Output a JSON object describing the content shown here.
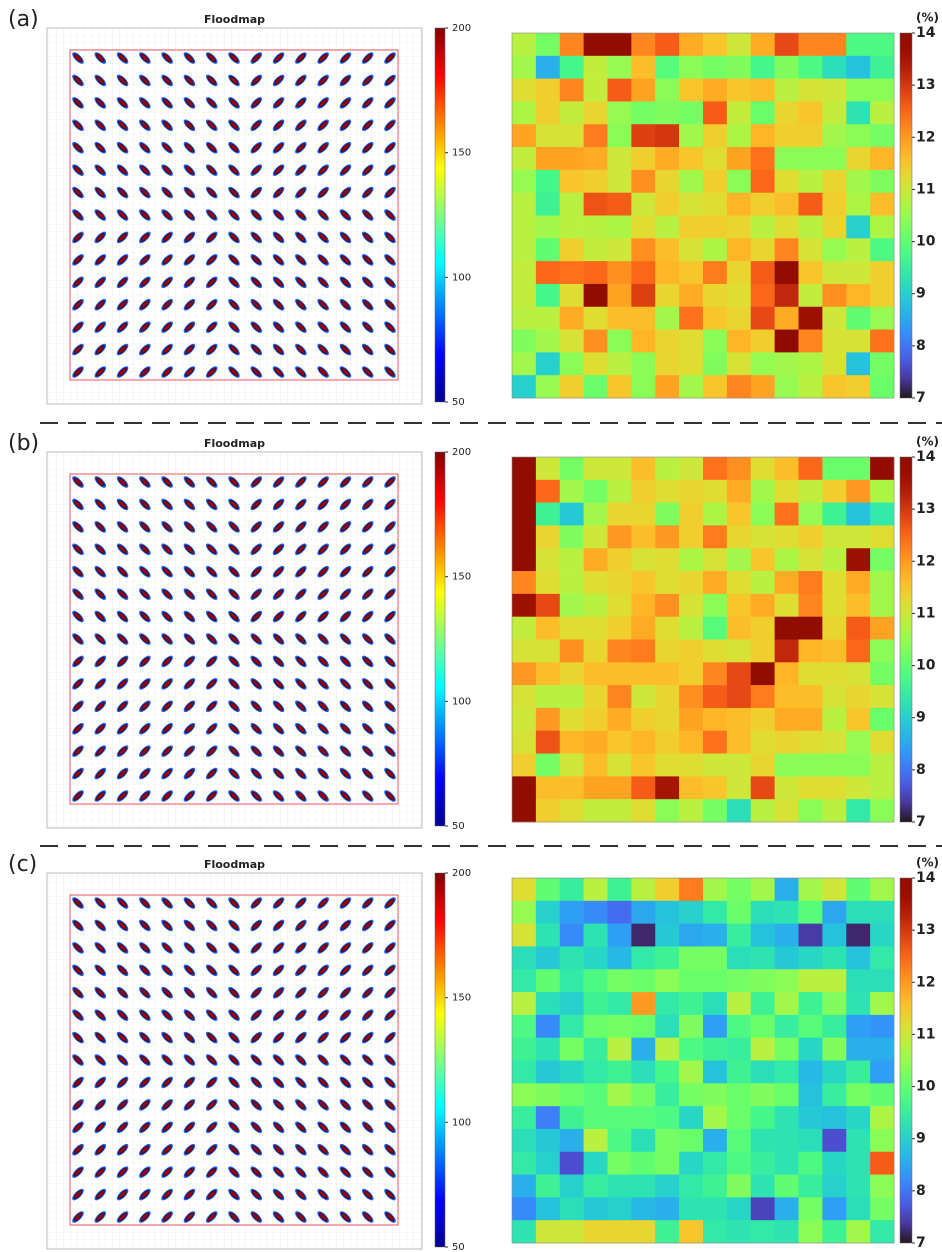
{
  "chart_data": [
    {
      "type": "heatmap",
      "label": "(a)",
      "floodmap": {
        "title": "Floodmap",
        "clim": [
          50,
          200
        ],
        "cticks": [
          50,
          100,
          150,
          200
        ]
      },
      "clim": [
        7,
        14
      ],
      "cticks": [
        7,
        8,
        9,
        10,
        11,
        12,
        13,
        14
      ],
      "unit": "(%)",
      "values": [
        [
          10.8,
          10.2,
          12.2,
          14,
          14,
          12.2,
          12.6,
          11.8,
          11.5,
          11,
          11.8,
          12.8,
          12.2,
          12.2,
          9.8,
          9.8
        ],
        [
          10.6,
          8.6,
          9.7,
          10.9,
          10.5,
          11.6,
          9.9,
          10.4,
          10.2,
          10.3,
          9.7,
          10.3,
          9.8,
          9.2,
          8.8,
          9.6
        ],
        [
          11.2,
          11.4,
          12.2,
          10.9,
          12.6,
          11.9,
          10.4,
          11.5,
          11.8,
          11.5,
          11.6,
          10.8,
          11.1,
          11,
          10.4,
          10.4
        ],
        [
          10.7,
          11.4,
          10.9,
          11.3,
          10.5,
          10.2,
          10.3,
          10.2,
          12.6,
          10.9,
          10.1,
          11.3,
          11.5,
          10.9,
          9.3,
          10.8
        ],
        [
          11.9,
          11.1,
          11.1,
          12.3,
          10.4,
          12.9,
          13,
          10.6,
          11.4,
          10.7,
          11.7,
          11.4,
          11.4,
          10.6,
          10.4,
          10.2
        ],
        [
          10.9,
          11.9,
          11.9,
          11.8,
          11,
          11.4,
          11.8,
          11.5,
          11.2,
          11.9,
          12.4,
          10.4,
          10.4,
          10.4,
          11.3,
          11.7
        ],
        [
          10.5,
          9.7,
          11.5,
          11.4,
          11,
          12.1,
          11.3,
          10.6,
          11.4,
          10.4,
          12.5,
          11.2,
          10.8,
          11.3,
          10.6,
          10.3
        ],
        [
          10.8,
          9.6,
          10.8,
          12.7,
          12.6,
          11,
          11.4,
          11.1,
          11.2,
          11.7,
          11.4,
          11.6,
          12.6,
          11.4,
          10.7,
          11.6
        ],
        [
          10.8,
          10.6,
          10.8,
          10.8,
          10.7,
          11.2,
          10.8,
          11.4,
          11.4,
          11.3,
          10.8,
          11.2,
          10.8,
          11.3,
          9,
          10.7
        ],
        [
          10.8,
          10,
          11.4,
          10.9,
          11,
          12.1,
          11.6,
          11.1,
          10.7,
          11.7,
          11.3,
          12.2,
          11.1,
          10.5,
          10.8,
          9.8
        ],
        [
          10.9,
          12.5,
          12.4,
          12.5,
          12.1,
          12.5,
          11.7,
          11.5,
          12.3,
          11.3,
          12.6,
          14,
          11.5,
          11,
          11,
          11.4
        ],
        [
          10.9,
          9.7,
          11.2,
          14,
          11.9,
          12.9,
          11.3,
          11.8,
          11.3,
          11.2,
          12.5,
          13.2,
          10.9,
          12.1,
          11.7,
          11.4
        ],
        [
          10.8,
          10.8,
          11.8,
          11.2,
          11.6,
          11.6,
          10.6,
          12.4,
          11.5,
          11.3,
          12.8,
          11.8,
          13.6,
          11,
          10,
          10.5
        ],
        [
          10.3,
          10.6,
          11.1,
          12.1,
          10.4,
          11.7,
          11.3,
          11.2,
          10.4,
          11.7,
          11.4,
          13.9,
          12.2,
          11.1,
          11.1,
          12.4
        ],
        [
          10.6,
          9,
          10.4,
          11.2,
          10.8,
          10.4,
          11.3,
          11.2,
          10.3,
          11.1,
          10.5,
          10.6,
          10.7,
          11.1,
          8.8,
          10.2
        ],
        [
          9,
          10.5,
          11.4,
          10.1,
          11.5,
          10.4,
          11.9,
          10.6,
          11.5,
          12.2,
          11.9,
          10.5,
          10.8,
          11.5,
          11.4,
          10.1
        ]
      ]
    },
    {
      "type": "heatmap",
      "label": "(b)",
      "floodmap": {
        "title": "Floodmap",
        "clim": [
          50,
          200
        ],
        "cticks": [
          50,
          100,
          150,
          200
        ]
      },
      "clim": [
        7,
        14
      ],
      "cticks": [
        7,
        8,
        9,
        10,
        11,
        12,
        13,
        14
      ],
      "unit": "(%)",
      "values": [
        [
          14,
          11,
          10.2,
          11,
          11,
          11.6,
          10.8,
          11,
          12.4,
          12.1,
          11.2,
          11.6,
          12.5,
          10.1,
          10.1,
          14
        ],
        [
          14,
          12.5,
          10.6,
          10.2,
          10.8,
          11.4,
          11.2,
          11.3,
          11.2,
          11.8,
          10.6,
          11.2,
          10.9,
          11.4,
          12,
          10.7
        ],
        [
          14,
          9.6,
          8.9,
          10.6,
          11.3,
          11.3,
          10.3,
          11.4,
          10.7,
          11.5,
          10.4,
          12.4,
          10.5,
          9.6,
          8.8,
          9.4
        ],
        [
          14,
          11.3,
          10.3,
          11,
          12,
          11.6,
          12,
          11.4,
          12.3,
          11.3,
          11.1,
          11.2,
          11.4,
          11,
          11,
          11.2
        ],
        [
          14,
          11.1,
          10.8,
          11.8,
          11.4,
          11.1,
          11.2,
          10.7,
          11.1,
          10.6,
          11.5,
          10.7,
          11.1,
          10.8,
          13.6,
          10.2
        ],
        [
          12.2,
          11.2,
          10.8,
          11.2,
          11.3,
          11.5,
          11.2,
          11.3,
          11.8,
          11.2,
          10.8,
          11.8,
          12.3,
          11.2,
          11.8,
          10.6
        ],
        [
          13.6,
          12.8,
          10.6,
          10.8,
          11.2,
          11.7,
          12.1,
          11.1,
          10.4,
          11.5,
          11.8,
          11.2,
          12.2,
          11.2,
          11.6,
          10.6
        ],
        [
          10.9,
          11.6,
          11.2,
          11.2,
          11.4,
          11.8,
          11.2,
          10.8,
          9.9,
          11.6,
          11.4,
          14,
          14,
          11.3,
          12.6,
          11.9
        ],
        [
          11.1,
          11.1,
          12.1,
          11.3,
          12.2,
          12.3,
          11.3,
          11.4,
          11.2,
          11.1,
          11.4,
          13.2,
          11.7,
          11.6,
          12.5,
          10.4
        ],
        [
          12,
          11.6,
          11.3,
          11.6,
          11.6,
          11.6,
          11.6,
          11.4,
          12.2,
          12.8,
          14,
          11.7,
          11.2,
          11.2,
          11.1,
          10.2
        ],
        [
          11.1,
          10.8,
          10.8,
          11.3,
          12.2,
          11,
          11.3,
          12.1,
          12.6,
          12.8,
          12.3,
          11.6,
          11.6,
          11.1,
          11.3,
          11.1
        ],
        [
          11,
          12,
          11.2,
          11.4,
          11.8,
          11.4,
          11.3,
          11.9,
          11.7,
          11.6,
          11.4,
          11.8,
          11.8,
          10.8,
          11.5,
          10.1
        ],
        [
          11.1,
          12.7,
          11.7,
          11.8,
          11.5,
          11.7,
          11.4,
          11.7,
          12.4,
          11.6,
          11.2,
          11.3,
          11.2,
          11.1,
          10.5,
          11.2
        ],
        [
          11.4,
          10.2,
          11,
          11.6,
          11.1,
          11.5,
          11.2,
          11.2,
          11,
          11,
          11.3,
          10.4,
          10.4,
          10.4,
          10.4,
          10.8
        ],
        [
          14,
          11.6,
          11.6,
          11.9,
          11.9,
          12.6,
          13.5,
          11.6,
          11.5,
          11,
          12.8,
          11,
          11.2,
          11.2,
          11,
          10.8
        ],
        [
          14,
          11.4,
          11.2,
          10.9,
          10.9,
          11.2,
          10.4,
          10.8,
          10.2,
          9.2,
          10.8,
          11.1,
          10.4,
          10.8,
          9.4,
          10.4
        ]
      ]
    },
    {
      "type": "heatmap",
      "label": "(c)",
      "floodmap": {
        "title": "Floodmap",
        "clim": [
          50,
          200
        ],
        "cticks": [
          50,
          100,
          150,
          200
        ]
      },
      "clim": [
        7,
        14
      ],
      "cticks": [
        7,
        8,
        9,
        10,
        11,
        12,
        13,
        14
      ],
      "unit": "(%)",
      "values": [
        [
          11.2,
          10,
          9.5,
          10.8,
          9.6,
          10.8,
          11.4,
          12.3,
          10.6,
          10.2,
          10.6,
          8.6,
          10.6,
          11,
          10,
          10.6
        ],
        [
          10.5,
          9,
          8.4,
          8.2,
          7.9,
          8.5,
          8.8,
          9,
          9.4,
          10.1,
          9.2,
          9.3,
          9.9,
          8.5,
          9.2,
          9.2
        ],
        [
          11.1,
          9.3,
          8.2,
          9.3,
          8.4,
          7.2,
          8.9,
          8.5,
          8.6,
          9.5,
          8.8,
          8.6,
          7.4,
          8.8,
          7.2,
          9.1
        ],
        [
          9.2,
          8.9,
          9.3,
          9.1,
          8.7,
          9.4,
          9.6,
          10.2,
          10.2,
          9.2,
          9.3,
          8.9,
          9.1,
          9.3,
          8.8,
          9.4
        ],
        [
          9.4,
          10,
          9.4,
          9.8,
          10.2,
          10.1,
          10.4,
          10.1,
          10.1,
          10.2,
          10.3,
          10.4,
          10.8,
          10.8,
          9.2,
          9.2
        ],
        [
          10.8,
          9.2,
          9,
          9.6,
          9.4,
          12,
          9.4,
          9.6,
          9.2,
          10.8,
          9.6,
          10.6,
          9.6,
          10.3,
          9.3,
          10.6
        ],
        [
          9.8,
          8.2,
          9.4,
          10.1,
          10.2,
          10.1,
          9.2,
          10.3,
          8.4,
          9.8,
          10.1,
          9.5,
          9.9,
          9.5,
          8.4,
          8.3
        ],
        [
          9.6,
          9.3,
          10.2,
          9.5,
          10.8,
          8.6,
          10.8,
          9.8,
          9.6,
          9.5,
          10.8,
          10.2,
          9.1,
          10.3,
          8.6,
          8.6
        ],
        [
          9.4,
          8.9,
          9.1,
          9.4,
          9.6,
          9.2,
          9.7,
          10.6,
          8.8,
          9.6,
          9.2,
          9.4,
          8.7,
          9.1,
          9.5,
          8.4
        ],
        [
          10.4,
          10.3,
          10.1,
          9.9,
          10.6,
          10.2,
          9.5,
          10.2,
          10.3,
          10.1,
          10.3,
          10.1,
          8.8,
          9.5,
          10.2,
          10
        ],
        [
          9.5,
          8.1,
          9.6,
          9.9,
          9.9,
          9.9,
          9.8,
          9.1,
          10.6,
          10.1,
          9.7,
          9.3,
          8.9,
          8.8,
          9.1,
          10.7
        ],
        [
          9.2,
          8.9,
          8.6,
          10.8,
          9.8,
          9.2,
          10.2,
          10.1,
          8.6,
          9.9,
          9.3,
          9.3,
          9.2,
          7.6,
          9.3,
          10.4
        ],
        [
          9.4,
          9,
          7.6,
          9.1,
          10.2,
          10,
          10.2,
          9.1,
          9.4,
          9.8,
          9.5,
          9.3,
          9.8,
          9.1,
          9.3,
          12.6
        ],
        [
          8.6,
          9.6,
          9,
          9.5,
          9.3,
          9.3,
          9,
          9.4,
          9.6,
          10.3,
          9.3,
          10,
          9.5,
          9,
          9.3,
          10.4
        ],
        [
          8.2,
          8.8,
          9.2,
          8.9,
          9,
          8.7,
          8.6,
          9.3,
          9.3,
          9.1,
          7.5,
          8.6,
          10.2,
          8.4,
          9.2,
          10.2
        ],
        [
          9.3,
          11,
          11,
          11.3,
          11.3,
          11.3,
          9.6,
          11.5,
          9.4,
          9.3,
          9.4,
          9.3,
          10.4,
          9.6,
          10.6,
          9.4
        ]
      ]
    }
  ]
}
